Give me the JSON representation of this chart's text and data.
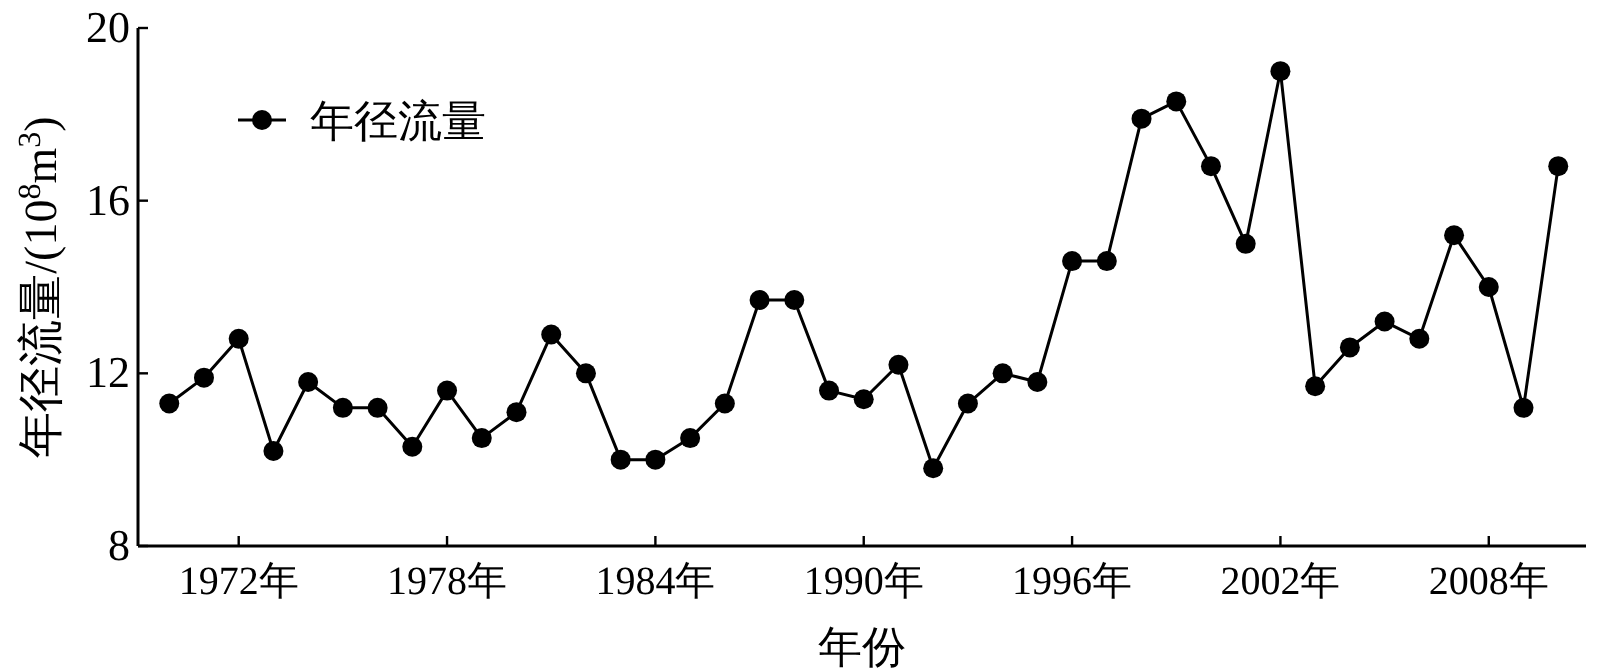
{
  "chart_data": {
    "type": "line",
    "xlabel": "年份",
    "ylabel": "年径流量/(10$^{8}$m$^{3}$)",
    "series": [
      {
        "name": "年径流量",
        "color": "#000000",
        "x": [
          1970,
          1971,
          1972,
          1973,
          1974,
          1975,
          1976,
          1977,
          1978,
          1979,
          1980,
          1981,
          1982,
          1983,
          1984,
          1985,
          1986,
          1987,
          1988,
          1989,
          1990,
          1991,
          1992,
          1993,
          1994,
          1995,
          1996,
          1997,
          1998,
          1999,
          2000,
          2001,
          2002,
          2003,
          2004,
          2005,
          2006,
          2007,
          2008,
          2009,
          2010
        ],
        "values": [
          11.3,
          11.9,
          12.8,
          10.2,
          11.8,
          11.2,
          11.2,
          10.3,
          11.6,
          10.5,
          11.1,
          12.9,
          12.0,
          10.0,
          10.0,
          10.5,
          11.3,
          13.7,
          13.7,
          11.6,
          11.4,
          12.2,
          9.8,
          11.3,
          12.0,
          11.8,
          14.6,
          14.6,
          17.9,
          18.3,
          16.8,
          15.0,
          19.0,
          11.7,
          12.6,
          13.2,
          12.8,
          15.2,
          14.0,
          11.2,
          16.8
        ]
      }
    ],
    "xlim": [
      1969.1,
      2010.8
    ],
    "ylim": [
      8,
      20
    ],
    "xticks": [
      {
        "value": 1972,
        "label": "1972年"
      },
      {
        "value": 1978,
        "label": "1978年"
      },
      {
        "value": 1984,
        "label": "1984年"
      },
      {
        "value": 1990,
        "label": "1990年"
      },
      {
        "value": 1996,
        "label": "1996年"
      },
      {
        "value": 2002,
        "label": "2002年"
      },
      {
        "value": 2008,
        "label": "2008年"
      }
    ],
    "yticks": [
      8,
      12,
      16,
      20
    ],
    "grid": false,
    "legend": "top left",
    "marker": "circle",
    "line_style": "solid"
  }
}
